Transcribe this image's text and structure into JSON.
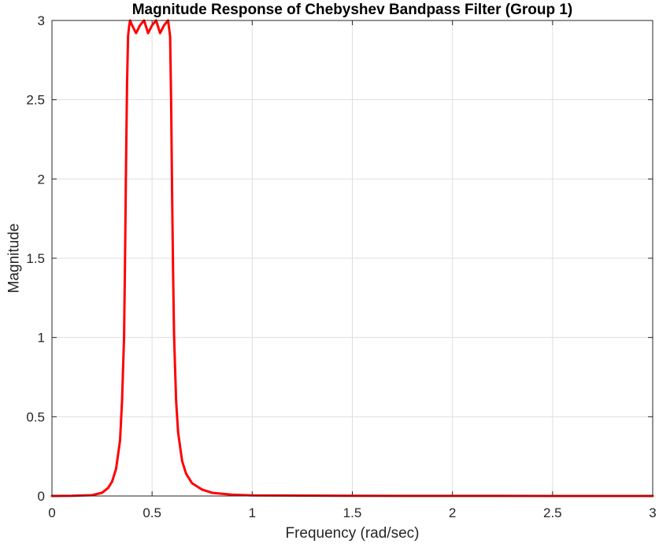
{
  "chart_data": {
    "type": "line",
    "title": "Magnitude Response of Chebyshev Bandpass Filter (Group 1)",
    "xlabel": "Frequency (rad/sec)",
    "ylabel": "Magnitude",
    "xlim": [
      0,
      3
    ],
    "ylim": [
      0,
      3
    ],
    "grid": true,
    "xticks": [
      0,
      0.5,
      1,
      1.5,
      2,
      2.5,
      3
    ],
    "xtick_labels": [
      "0",
      "0.5",
      "1",
      "1.5",
      "2",
      "2.5",
      "3"
    ],
    "yticks": [
      0,
      0.5,
      1,
      1.5,
      2,
      2.5,
      3
    ],
    "ytick_labels": [
      "0",
      "0.5",
      "1",
      "1.5",
      "2",
      "2.5",
      "3"
    ],
    "series": [
      {
        "color": "#ff0000",
        "x": [
          0,
          0.1,
          0.2,
          0.25,
          0.28,
          0.3,
          0.32,
          0.34,
          0.35,
          0.36,
          0.365,
          0.37,
          0.375,
          0.38,
          0.385,
          0.39,
          0.4,
          0.42,
          0.44,
          0.46,
          0.48,
          0.5,
          0.52,
          0.54,
          0.56,
          0.58,
          0.59,
          0.595,
          0.6,
          0.605,
          0.61,
          0.62,
          0.63,
          0.65,
          0.67,
          0.7,
          0.75,
          0.8,
          0.9,
          1.0,
          1.5,
          2.0,
          2.5,
          3.0
        ],
        "y": [
          0,
          0.001,
          0.005,
          0.02,
          0.05,
          0.09,
          0.17,
          0.35,
          0.6,
          1.0,
          1.5,
          2.1,
          2.6,
          2.9,
          2.96,
          3.0,
          2.97,
          2.92,
          2.97,
          3.0,
          2.92,
          2.97,
          3.0,
          2.92,
          2.97,
          3.0,
          2.9,
          2.5,
          1.9,
          1.4,
          1.0,
          0.6,
          0.4,
          0.22,
          0.14,
          0.08,
          0.04,
          0.02,
          0.008,
          0.004,
          0.001,
          0.0005,
          0.0003,
          0.0002
        ]
      }
    ]
  }
}
